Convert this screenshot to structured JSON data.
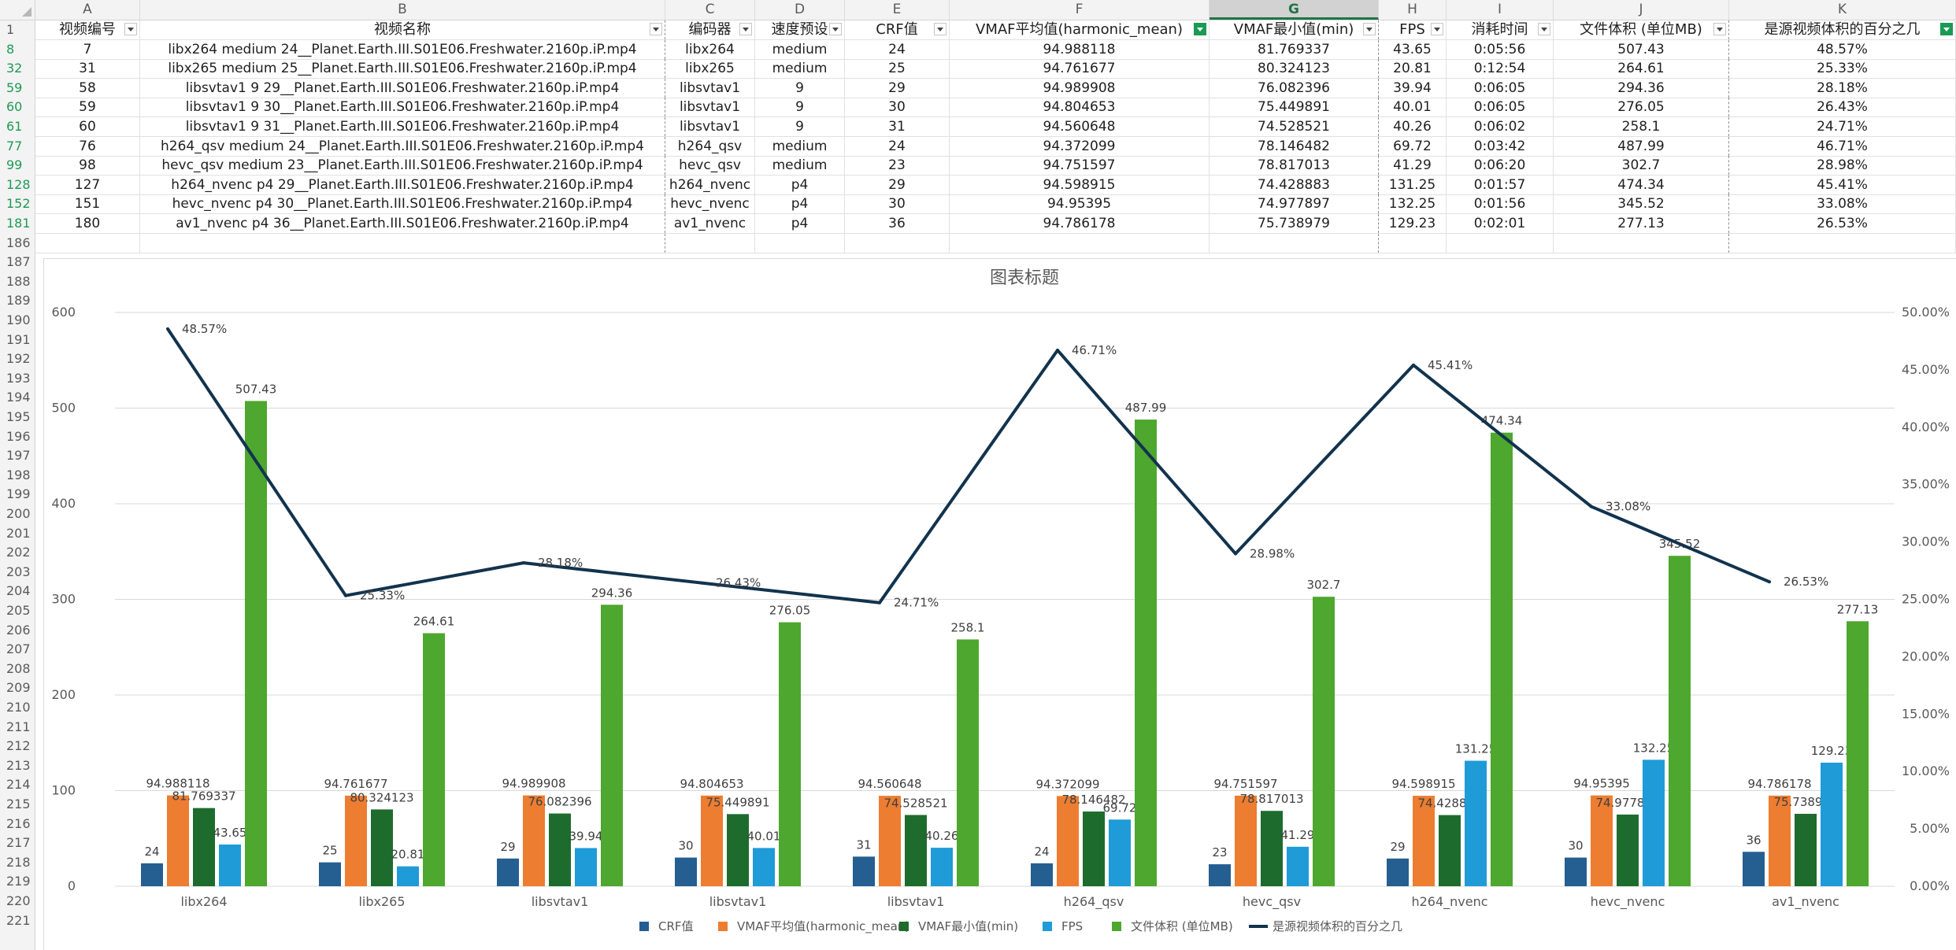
{
  "sheet": {
    "selected_column": "G",
    "columns": [
      {
        "letter": "A",
        "header": "视频编号"
      },
      {
        "letter": "B",
        "header": "视频名称"
      },
      {
        "letter": "C",
        "header": "编码器"
      },
      {
        "letter": "D",
        "header": "速度预设"
      },
      {
        "letter": "E",
        "header": "CRF值"
      },
      {
        "letter": "F",
        "header": "VMAF平均值(harmonic_mean)"
      },
      {
        "letter": "G",
        "header": "VMAF最小值(min)"
      },
      {
        "letter": "H",
        "header": "FPS"
      },
      {
        "letter": "I",
        "header": "消耗时间"
      },
      {
        "letter": "J",
        "header": "文件体积 (单位MB)"
      },
      {
        "letter": "K",
        "header": "是源视频体积的百分之几"
      }
    ],
    "filter_active_columns": [
      "F",
      "K"
    ],
    "rows": [
      {
        "row": "8",
        "cells": [
          "7",
          "libx264 medium 24__Planet.Earth.III.S01E06.Freshwater.2160p.iP.mp4",
          "libx264",
          "medium",
          "24",
          "94.988118",
          "81.769337",
          "43.65",
          "0:05:56",
          "507.43",
          "48.57%"
        ]
      },
      {
        "row": "32",
        "cells": [
          "31",
          "libx265 medium 25__Planet.Earth.III.S01E06.Freshwater.2160p.iP.mp4",
          "libx265",
          "medium",
          "25",
          "94.761677",
          "80.324123",
          "20.81",
          "0:12:54",
          "264.61",
          "25.33%"
        ]
      },
      {
        "row": "59",
        "cells": [
          "58",
          "libsvtav1 9 29__Planet.Earth.III.S01E06.Freshwater.2160p.iP.mp4",
          "libsvtav1",
          "9",
          "29",
          "94.989908",
          "76.082396",
          "39.94",
          "0:06:05",
          "294.36",
          "28.18%"
        ]
      },
      {
        "row": "60",
        "cells": [
          "59",
          "libsvtav1 9 30__Planet.Earth.III.S01E06.Freshwater.2160p.iP.mp4",
          "libsvtav1",
          "9",
          "30",
          "94.804653",
          "75.449891",
          "40.01",
          "0:06:05",
          "276.05",
          "26.43%"
        ]
      },
      {
        "row": "61",
        "cells": [
          "60",
          "libsvtav1 9 31__Planet.Earth.III.S01E06.Freshwater.2160p.iP.mp4",
          "libsvtav1",
          "9",
          "31",
          "94.560648",
          "74.528521",
          "40.26",
          "0:06:02",
          "258.1",
          "24.71%"
        ]
      },
      {
        "row": "77",
        "cells": [
          "76",
          "h264_qsv medium 24__Planet.Earth.III.S01E06.Freshwater.2160p.iP.mp4",
          "h264_qsv",
          "medium",
          "24",
          "94.372099",
          "78.146482",
          "69.72",
          "0:03:42",
          "487.99",
          "46.71%"
        ]
      },
      {
        "row": "99",
        "cells": [
          "98",
          "hevc_qsv medium 23__Planet.Earth.III.S01E06.Freshwater.2160p.iP.mp4",
          "hevc_qsv",
          "medium",
          "23",
          "94.751597",
          "78.817013",
          "41.29",
          "0:06:20",
          "302.7",
          "28.98%"
        ]
      },
      {
        "row": "128",
        "cells": [
          "127",
          "h264_nvenc p4 29__Planet.Earth.III.S01E06.Freshwater.2160p.iP.mp4",
          "h264_nvenc",
          "p4",
          "29",
          "94.598915",
          "74.428883",
          "131.25",
          "0:01:57",
          "474.34",
          "45.41%"
        ]
      },
      {
        "row": "152",
        "cells": [
          "151",
          "hevc_nvenc p4 30__Planet.Earth.III.S01E06.Freshwater.2160p.iP.mp4",
          "hevc_nvenc",
          "p4",
          "30",
          "94.95395",
          "74.977897",
          "132.25",
          "0:01:56",
          "345.52",
          "33.08%"
        ]
      },
      {
        "row": "181",
        "cells": [
          "180",
          "av1_nvenc p4 36__Planet.Earth.III.S01E06.Freshwater.2160p.iP.mp4",
          "av1_nvenc",
          "p4",
          "36",
          "94.786178",
          "75.738979",
          "129.23",
          "0:02:01",
          "277.13",
          "26.53%"
        ]
      }
    ],
    "header_row_number": "1",
    "empty_row_numbers": [
      "186",
      "187",
      "188",
      "189",
      "190",
      "191",
      "192",
      "193",
      "194",
      "195",
      "196",
      "197",
      "198",
      "199",
      "200",
      "201",
      "202",
      "203",
      "204",
      "205",
      "206",
      "207",
      "208",
      "209",
      "210",
      "211",
      "212",
      "213",
      "214",
      "215",
      "216",
      "217",
      "218",
      "219",
      "220",
      "221"
    ]
  },
  "chart_data": {
    "type": "bar",
    "title": "图表标题",
    "categories": [
      "libx264",
      "libx265",
      "libsvtav1",
      "libsvtav1",
      "libsvtav1",
      "h264_qsv",
      "hevc_qsv",
      "h264_nvenc",
      "hevc_nvenc",
      "av1_nvenc"
    ],
    "series": [
      {
        "name": "CRF值",
        "color": "#255e91",
        "axis": "primary",
        "labels": [
          "24",
          "25",
          "29",
          "30",
          "31",
          "24",
          "23",
          "29",
          "30",
          "36"
        ],
        "values": [
          24,
          25,
          29,
          30,
          31,
          24,
          23,
          29,
          30,
          36
        ]
      },
      {
        "name": "VMAF平均值(harmonic_mean)",
        "color": "#ed7d31",
        "axis": "primary",
        "labels": [
          "94.988118",
          "94.761677",
          "94.989908",
          "94.804653",
          "94.560648",
          "94.372099",
          "94.751597",
          "94.598915",
          "94.95395",
          "94.786178"
        ],
        "values": [
          94.988118,
          94.761677,
          94.989908,
          94.804653,
          94.560648,
          94.372099,
          94.751597,
          94.598915,
          94.95395,
          94.786178
        ]
      },
      {
        "name": "VMAF最小值(min)",
        "color": "#1e6b2e",
        "axis": "primary",
        "labels": [
          "81.769337",
          "80.324123",
          "76.082396",
          "75.449891",
          "74.528521",
          "78.146482",
          "78.817013",
          "74.428883",
          "74.977897",
          "75.738979"
        ],
        "values": [
          81.769337,
          80.324123,
          76.082396,
          75.449891,
          74.528521,
          78.146482,
          78.817013,
          74.428883,
          74.977897,
          75.738979
        ]
      },
      {
        "name": "FPS",
        "color": "#1f9bd8",
        "axis": "primary",
        "labels": [
          "43.65",
          "20.81",
          "39.94",
          "40.01",
          "40.26",
          "69.72",
          "41.29",
          "131.25",
          "132.25",
          "129.23"
        ],
        "values": [
          43.65,
          20.81,
          39.94,
          40.01,
          40.26,
          69.72,
          41.29,
          131.25,
          132.25,
          129.23
        ]
      },
      {
        "name": "文件体积 (单位MB)",
        "color": "#4ea72e",
        "axis": "primary",
        "labels": [
          "507.43",
          "264.61",
          "294.36",
          "276.05",
          "258.1",
          "487.99",
          "302.7",
          "474.34",
          "345.52",
          "277.13"
        ],
        "values": [
          507.43,
          264.61,
          294.36,
          276.05,
          258.1,
          487.99,
          302.7,
          474.34,
          345.52,
          277.13
        ]
      },
      {
        "name": "是源视频体积的百分之几",
        "type": "line",
        "color": "#12334d",
        "axis": "secondary",
        "labels": [
          "48.57%",
          "25.33%",
          "28.18%",
          "26.43%",
          "24.71%",
          "46.71%",
          "28.98%",
          "45.41%",
          "33.08%",
          "26.53%"
        ],
        "values": [
          48.57,
          25.33,
          28.18,
          26.43,
          24.71,
          46.71,
          28.98,
          45.41,
          33.08,
          26.53
        ]
      }
    ],
    "ylim": [
      0,
      600
    ],
    "yticks": [
      "0",
      "100",
      "200",
      "300",
      "400",
      "500",
      "600"
    ],
    "y2lim": [
      0,
      50
    ],
    "y2ticks": [
      "0.00%",
      "5.00%",
      "10.00%",
      "15.00%",
      "20.00%",
      "25.00%",
      "30.00%",
      "35.00%",
      "40.00%",
      "45.00%",
      "50.00%"
    ],
    "grid": true,
    "legend": "bottom"
  }
}
